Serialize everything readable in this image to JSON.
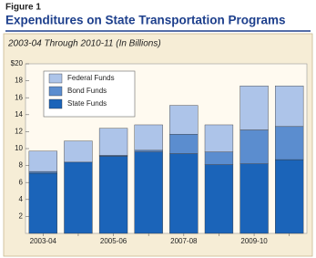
{
  "chart_data": {
    "type": "stacked_bar",
    "figure_label": "Figure 1",
    "title": "Expenditures on State Transportation Programs",
    "subtitle": "2003-04 Through 2010-11 (In Billions)",
    "categories": [
      "2003-04",
      null,
      "2005-06",
      null,
      "2007-08",
      null,
      "2009-10",
      null
    ],
    "series": [
      {
        "name": "State Funds",
        "color": "#1b64b9",
        "values": [
          7.1,
          8.4,
          9.1,
          9.6,
          9.4,
          8.1,
          8.2,
          8.7
        ]
      },
      {
        "name": "Bond Funds",
        "color": "#5b8dcf",
        "values": [
          0.2,
          0,
          0.1,
          0.2,
          2.3,
          1.5,
          4.0,
          3.9
        ]
      },
      {
        "name": "Federal Funds",
        "color": "#adc4e9",
        "values": [
          2.4,
          2.5,
          3.2,
          3.0,
          3.4,
          3.2,
          5.2,
          4.8
        ]
      }
    ],
    "ylim": [
      0,
      20
    ],
    "yticks": [
      2,
      4,
      6,
      8,
      10,
      12,
      14,
      16,
      18,
      {
        "value": 20,
        "label": "$20"
      }
    ],
    "legend": "upper-left"
  }
}
